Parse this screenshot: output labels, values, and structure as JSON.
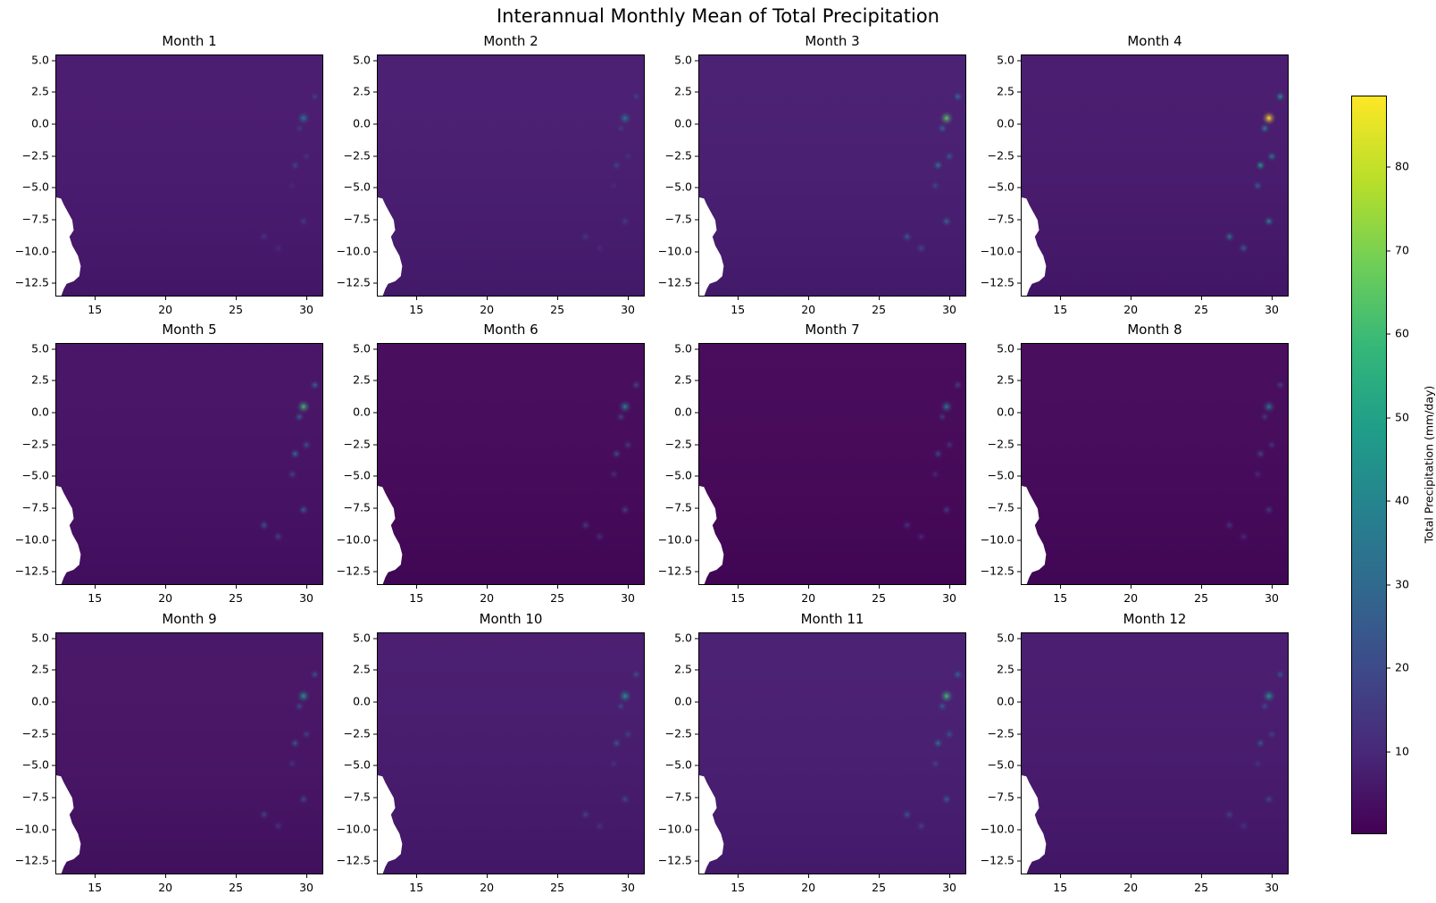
{
  "chart_data": {
    "type": "heatmap",
    "title": "Interannual Monthly Mean of Total Precipitation",
    "layout": {
      "rows": 3,
      "cols": 4
    },
    "xlabel": "",
    "ylabel": "",
    "xlim": [
      12.2,
      31.2
    ],
    "ylim": [
      -13.6,
      5.4
    ],
    "xticks": [
      15,
      20,
      25,
      30
    ],
    "yticks": [
      5.0,
      2.5,
      0.0,
      -2.5,
      -5.0,
      -7.5,
      -10.0,
      -12.5
    ],
    "xtick_labels": [
      "15",
      "20",
      "25",
      "30"
    ],
    "ytick_labels": [
      "5.0",
      "2.5",
      "0.0",
      "−2.5",
      "−5.0",
      "−7.5",
      "−10.0",
      "−12.5"
    ],
    "colorbar": {
      "label": "Total Precipitation (mm/day)",
      "colormap": "viridis",
      "range": [
        0,
        88.5
      ],
      "ticks": [
        10,
        20,
        30,
        40,
        50,
        60,
        70,
        80
      ],
      "tick_labels": [
        "10",
        "20",
        "30",
        "40",
        "50",
        "60",
        "70",
        "80"
      ],
      "position": "right"
    },
    "panels": [
      {
        "title": "Month 1",
        "background_level": 6,
        "hotspot_peak": 35,
        "base_color": "#47176e"
      },
      {
        "title": "Month 2",
        "background_level": 6,
        "hotspot_peak": 35,
        "base_color": "#471a70"
      },
      {
        "title": "Month 3",
        "background_level": 6,
        "hotspot_peak": 65,
        "base_color": "#471b71"
      },
      {
        "title": "Month 4",
        "background_level": 5,
        "hotspot_peak": 88,
        "base_color": "#46176d"
      },
      {
        "title": "Month 5",
        "background_level": 3,
        "hotspot_peak": 60,
        "base_color": "#450f64"
      },
      {
        "title": "Month 6",
        "background_level": 1,
        "hotspot_peak": 40,
        "base_color": "#44075a"
      },
      {
        "title": "Month 7",
        "background_level": 1,
        "hotspot_peak": 35,
        "base_color": "#440558"
      },
      {
        "title": "Month 8",
        "background_level": 1,
        "hotspot_peak": 35,
        "base_color": "#44075a"
      },
      {
        "title": "Month 9",
        "background_level": 3,
        "hotspot_peak": 45,
        "base_color": "#451163"
      },
      {
        "title": "Month 10",
        "background_level": 5,
        "hotspot_peak": 45,
        "base_color": "#46186d"
      },
      {
        "title": "Month 11",
        "background_level": 6,
        "hotspot_peak": 60,
        "base_color": "#471b71"
      },
      {
        "title": "Month 12",
        "background_level": 6,
        "hotspot_peak": 45,
        "base_color": "#46176d"
      }
    ],
    "notes": "Each panel is a gridded precipitation map over Central Africa (lon 12-31E, lat 13.6S-5.4N); ocean/no-data region on west coast (lon<14.5, lat<-5.8) is white. Highest values appear near lon 29.8, lat 0.4."
  }
}
